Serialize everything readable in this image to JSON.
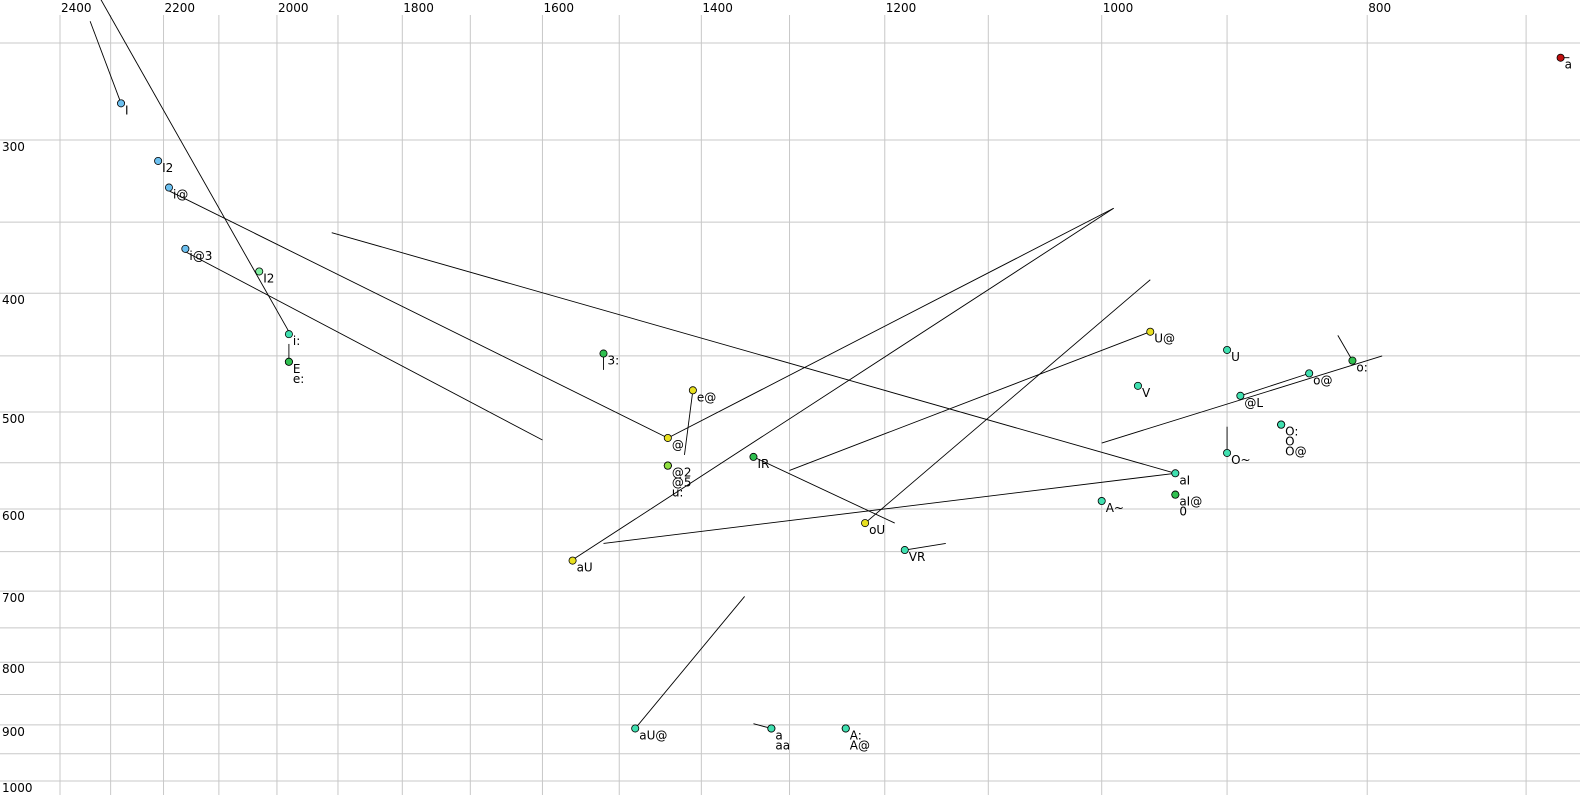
{
  "chart_data": {
    "type": "scatter",
    "log_x": true,
    "log_y": true,
    "x_reversed": true,
    "xlim": [
      2400,
      669
    ],
    "ylim": [
      250,
      1000
    ],
    "xticks": [
      2400,
      2200,
      2000,
      1800,
      1600,
      1400,
      1200,
      1000,
      800
    ],
    "minor_xticks": [
      2300,
      2100,
      1900,
      1700,
      1500,
      1300,
      1100,
      900,
      700
    ],
    "yticks": [
      300,
      400,
      500,
      600,
      700,
      800,
      900,
      1000
    ],
    "minor_yticks": [
      250,
      350,
      450,
      550,
      650,
      750,
      850,
      950
    ],
    "grid": true,
    "labels": [
      "I",
      "I2",
      "i@",
      "i@3",
      "I2",
      "i:",
      "E",
      "e:",
      "3:",
      "e@",
      "@",
      "@2",
      "@5",
      "u:",
      "aU",
      "IR",
      "oU",
      "VR",
      "U@",
      "V",
      "U",
      "@L",
      "o@",
      "o:",
      "O:",
      "O",
      "O@",
      "O~",
      "aI",
      "aI@",
      "0",
      "A~",
      "aU@",
      "a",
      "aa",
      "A:",
      "A@",
      "a"
    ],
    "x": [
      2280,
      2210,
      2190,
      2160,
      2030,
      1980,
      1980,
      1980,
      1520,
      1410,
      1440,
      1440,
      1440,
      1440,
      1560,
      1340,
      1220,
      1180,
      960,
      970,
      900,
      890,
      840,
      810,
      860,
      860,
      860,
      900,
      940,
      940,
      940,
      1000,
      1480,
      1320,
      1320,
      1240,
      1240,
      680
    ],
    "y": [
      280,
      312,
      328,
      368,
      384,
      432,
      455,
      455,
      448,
      480,
      525,
      553,
      553,
      553,
      661,
      544,
      616,
      648,
      430,
      476,
      445,
      485,
      465,
      454,
      512,
      512,
      512,
      540,
      561,
      584,
      584,
      591,
      906,
      906,
      906,
      906,
      906,
      257
    ],
    "colors": [
      "#6cc0f0",
      "#6cc0f0",
      "#6cc0f0",
      "#6cc0f0",
      "#80f0a0",
      "#40e0b0",
      "#30c050",
      "#30c050",
      "#30c050",
      "#e8e020",
      "#e8e020",
      "#90e040",
      "#90e040",
      "#90e040",
      "#e8e020",
      "#30c050",
      "#e8e020",
      "#40e0b0",
      "#e8e020",
      "#40e0b0",
      "#40e0b0",
      "#40e0b0",
      "#40e0b0",
      "#30c050",
      "#40e0b0",
      "#40e0b0",
      "#40e0b0",
      "#40e0b0",
      "#40e0b0",
      "#30c050",
      "#30c050",
      "#40e0b0",
      "#40e0b0",
      "#40e0b0",
      "#40e0b0",
      "#40e0b0",
      "#40e0b0",
      "#c01010"
    ],
    "segments": [
      [
        2340,
        240,
        2280,
        280
      ],
      [
        2320,
        230,
        1980,
        430
      ],
      [
        1980,
        440,
        1980,
        455
      ],
      [
        2190,
        330,
        1440,
        525
      ],
      [
        2160,
        370,
        1600,
        527
      ],
      [
        1910,
        357,
        940,
        561
      ],
      [
        1440,
        525,
        990,
        341
      ],
      [
        1560,
        660,
        990,
        341
      ],
      [
        1410,
        480,
        1420,
        542
      ],
      [
        1520,
        450,
        1520,
        462
      ],
      [
        1340,
        544,
        1190,
        616
      ],
      [
        1300,
        558,
        960,
        430
      ],
      [
        1220,
        616,
        960,
        390
      ],
      [
        1520,
        640,
        940,
        561
      ],
      [
        1180,
        648,
        1140,
        640
      ],
      [
        1480,
        906,
        1350,
        707
      ],
      [
        1340,
        898,
        1320,
        906
      ],
      [
        1000,
        530,
        790,
        450
      ],
      [
        890,
        485,
        840,
        465
      ],
      [
        820,
        433,
        810,
        454
      ],
      [
        900,
        514,
        900,
        540
      ],
      [
        680,
        257,
        675,
        257
      ]
    ]
  }
}
